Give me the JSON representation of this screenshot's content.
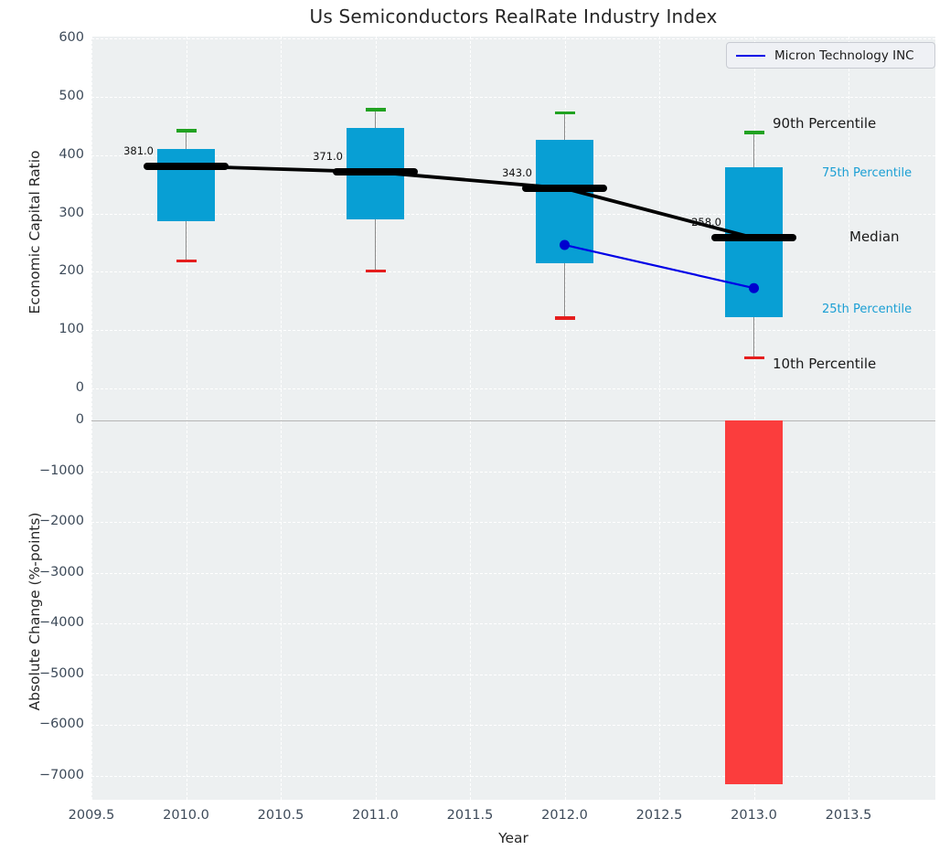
{
  "title": "Us Semiconductors RealRate Industry Index",
  "legend": {
    "label": "Micron Technology INC",
    "line_color": "#0000e6"
  },
  "axes": {
    "top": {
      "label": "Economic Capital Ratio",
      "ticks": [
        {
          "v": 600,
          "t": "600"
        },
        {
          "v": 500,
          "t": "500"
        },
        {
          "v": 400,
          "t": "400"
        },
        {
          "v": 300,
          "t": "300"
        },
        {
          "v": 200,
          "t": "200"
        },
        {
          "v": 100,
          "t": "100"
        },
        {
          "v": 0,
          "t": "0"
        }
      ]
    },
    "bottom": {
      "label": "Absolute Change (%-points)",
      "ticks": [
        {
          "v": 0,
          "t": "0"
        },
        {
          "v": -1000,
          "t": "−1000"
        },
        {
          "v": -2000,
          "t": "−2000"
        },
        {
          "v": -3000,
          "t": "−3000"
        },
        {
          "v": -4000,
          "t": "−4000"
        },
        {
          "v": -5000,
          "t": "−5000"
        },
        {
          "v": -6000,
          "t": "−6000"
        },
        {
          "v": -7000,
          "t": "−7000"
        }
      ]
    },
    "x": {
      "label": "Year",
      "ticks": [
        {
          "v": 2009.5,
          "t": "2009.5"
        },
        {
          "v": 2010.0,
          "t": "2010.0"
        },
        {
          "v": 2010.5,
          "t": "2010.5"
        },
        {
          "v": 2011.0,
          "t": "2011.0"
        },
        {
          "v": 2011.5,
          "t": "2011.5"
        },
        {
          "v": 2012.0,
          "t": "2012.0"
        },
        {
          "v": 2012.5,
          "t": "2012.5"
        },
        {
          "v": 2013.0,
          "t": "2013.0"
        },
        {
          "v": 2013.5,
          "t": "2013.5"
        }
      ]
    }
  },
  "colors": {
    "box_fill": "#089fd4",
    "bar_fill": "#fb3d3d",
    "micron_line": "#0000e6",
    "micron_dot": "#0000cf",
    "median_line": "#000000",
    "cap_high": "#21a221",
    "cap_low": "#e51d1d",
    "minor_label": "#1b9fd4",
    "plot_bg": "#edf0f1"
  },
  "chart_data": [
    {
      "type": "box",
      "title": "Us Semiconductors RealRate Industry Index",
      "xlabel": "Year",
      "ylabel": "Economic Capital Ratio",
      "xlim": [
        2009.5,
        2014.0
      ],
      "ylim": [
        -55,
        605
      ],
      "grid": true,
      "legend_position": "upper right",
      "boxes": [
        {
          "year": 2010,
          "p10": 219,
          "p25": 287,
          "median": 381,
          "p75": 410,
          "p90": 442,
          "median_label": "381.0"
        },
        {
          "year": 2011,
          "p10": 202,
          "p25": 290,
          "median": 371,
          "p75": 446,
          "p90": 478,
          "median_label": "371.0"
        },
        {
          "year": 2012,
          "p10": 121,
          "p25": 215,
          "median": 343,
          "p75": 426,
          "p90": 473,
          "median_label": "343.0"
        },
        {
          "year": 2013,
          "p10": 53,
          "p25": 122,
          "median": 258,
          "p75": 379,
          "p90": 439,
          "median_label": "258.0"
        }
      ],
      "median_trend": {
        "x": [
          2010,
          2011,
          2012,
          2013
        ],
        "y": [
          381,
          371,
          343,
          258
        ]
      },
      "series": [
        {
          "name": "Micron Technology INC",
          "x": [
            2012,
            2013
          ],
          "y": [
            246,
            172
          ]
        }
      ],
      "percentile_labels": [
        {
          "text": "90th Percentile",
          "ref": "p90",
          "style": "major"
        },
        {
          "text": "75th Percentile",
          "ref": "p75",
          "style": "minor"
        },
        {
          "text": "Median",
          "ref": "median",
          "style": "major"
        },
        {
          "text": "25th Percentile",
          "ref": "p25",
          "style": "minor"
        },
        {
          "text": "10th Percentile",
          "ref": "p10",
          "style": "major"
        }
      ]
    },
    {
      "type": "bar",
      "xlabel": "Year",
      "ylabel": "Absolute Change (%-points)",
      "x": [
        2013
      ],
      "values": [
        -7160
      ],
      "ylim": [
        -7460,
        0
      ],
      "grid": true
    }
  ]
}
